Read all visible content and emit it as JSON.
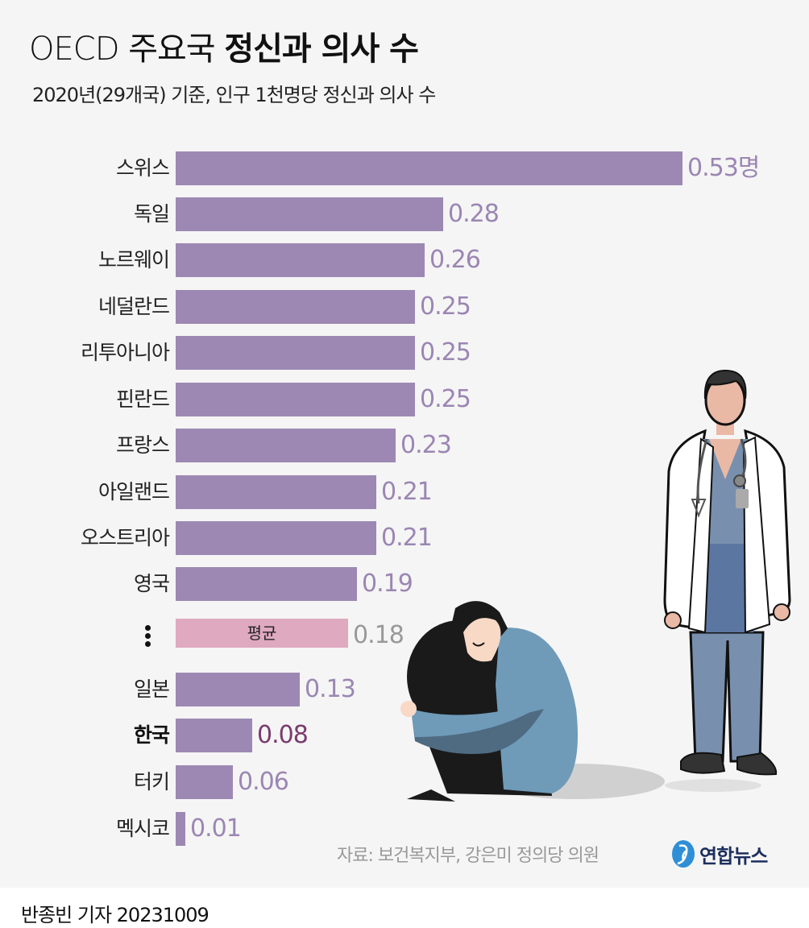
{
  "header": {
    "title_light": "OECD 주요국 ",
    "title_bold": "정신과 의사 수",
    "subtitle": "2020년(29개국) 기준, 인구 1천명당 정신과 의사 수"
  },
  "colors": {
    "bar": "#9d88b3",
    "average_bar": "#dfa9c0",
    "value_text": "#9b86b3",
    "average_value_text": "#999999",
    "korea_value_text": "#7b3a6e",
    "background": "#f5f5f5"
  },
  "rows": [
    {
      "label": "스위스",
      "value": 0.53,
      "display": "0.53명"
    },
    {
      "label": "독일",
      "value": 0.28,
      "display": "0.28"
    },
    {
      "label": "노르웨이",
      "value": 0.26,
      "display": "0.26"
    },
    {
      "label": "네덜란드",
      "value": 0.25,
      "display": "0.25"
    },
    {
      "label": "리투아니아",
      "value": 0.25,
      "display": "0.25"
    },
    {
      "label": "핀란드",
      "value": 0.25,
      "display": "0.25"
    },
    {
      "label": "프랑스",
      "value": 0.23,
      "display": "0.23"
    },
    {
      "label": "아일랜드",
      "value": 0.21,
      "display": "0.21"
    },
    {
      "label": "오스트리아",
      "value": 0.21,
      "display": "0.21"
    },
    {
      "label": "영국",
      "value": 0.19,
      "display": "0.19"
    },
    {
      "label": "",
      "value": 0.18,
      "display": "0.18",
      "bar_text": "평균",
      "type": "average"
    },
    {
      "label": "일본",
      "value": 0.13,
      "display": "0.13"
    },
    {
      "label": "한국",
      "value": 0.08,
      "display": "0.08",
      "type": "highlight"
    },
    {
      "label": "터키",
      "value": 0.06,
      "display": "0.06"
    },
    {
      "label": "멕시코",
      "value": 0.01,
      "display": "0.01"
    }
  ],
  "chart_data": {
    "type": "bar",
    "orientation": "horizontal",
    "title": "OECD 주요국 정신과 의사 수",
    "subtitle": "2020년(29개국) 기준, 인구 1천명당 정신과 의사 수",
    "categories": [
      "스위스",
      "독일",
      "노르웨이",
      "네덜란드",
      "리투아니아",
      "핀란드",
      "프랑스",
      "아일랜드",
      "오스트리아",
      "영국",
      "평균",
      "일본",
      "한국",
      "터키",
      "멕시코"
    ],
    "values": [
      0.53,
      0.28,
      0.26,
      0.25,
      0.25,
      0.25,
      0.23,
      0.21,
      0.21,
      0.19,
      0.18,
      0.13,
      0.08,
      0.06,
      0.01
    ],
    "unit": "명",
    "xlabel": "",
    "ylabel": "",
    "xlim": [
      0,
      0.53
    ],
    "grid": false,
    "legend": null,
    "annotations": [
      "평균 0.18 (highlighted in pink)",
      "한국 0.08 (highlighted)",
      "⋮ indicates omitted countries"
    ]
  },
  "footer": {
    "source": "자료: 보건복지부, 강은미 정의당 의원",
    "logo_text": "연합뉴스",
    "byline": "반종빈 기자  20231009"
  }
}
